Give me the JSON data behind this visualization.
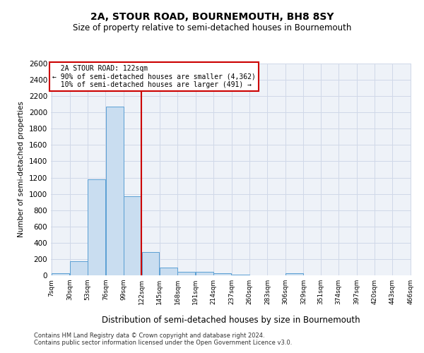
{
  "title": "2A, STOUR ROAD, BOURNEMOUTH, BH8 8SY",
  "subtitle": "Size of property relative to semi-detached houses in Bournemouth",
  "xlabel": "Distribution of semi-detached houses by size in Bournemouth",
  "ylabel": "Number of semi-detached properties",
  "footnote1": "Contains HM Land Registry data © Crown copyright and database right 2024.",
  "footnote2": "Contains public sector information licensed under the Open Government Licence v3.0.",
  "property_size": 122,
  "property_label": "2A STOUR ROAD: 122sqm",
  "pct_smaller": 90,
  "count_smaller": 4362,
  "pct_larger": 10,
  "count_larger": 491,
  "bin_edges": [
    7,
    30,
    53,
    76,
    99,
    122,
    145,
    168,
    191,
    214,
    237,
    260,
    283,
    306,
    329,
    351,
    374,
    397,
    420,
    443,
    466
  ],
  "bar_heights": [
    25,
    175,
    1175,
    2075,
    975,
    285,
    95,
    45,
    40,
    30,
    5,
    0,
    0,
    30,
    0,
    0,
    0,
    0,
    0,
    0
  ],
  "bar_color": "#c9ddf0",
  "bar_edge_color": "#5a9fd4",
  "line_color": "#cc0000",
  "grid_color": "#d0d8e8",
  "bg_color": "#eef2f8",
  "ylim": [
    0,
    2600
  ],
  "yticks": [
    0,
    200,
    400,
    600,
    800,
    1000,
    1200,
    1400,
    1600,
    1800,
    2000,
    2200,
    2400,
    2600
  ]
}
